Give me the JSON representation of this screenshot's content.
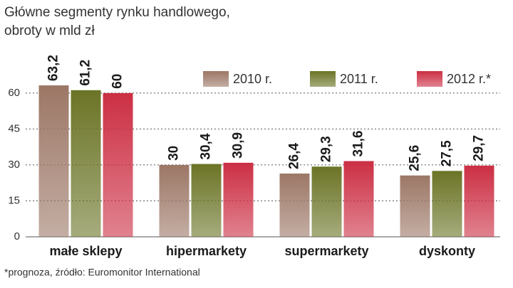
{
  "chart_data": {
    "type": "bar",
    "title": [
      "Główne segmenty rynku handlowego,",
      "obroty w mld zł"
    ],
    "footnote": "*prognoza, źródło: Euromonitor International",
    "categories": [
      "małe sklepy",
      "hipermarkety",
      "supermarkety",
      "dyskonty"
    ],
    "series": [
      {
        "name": "2010 r.",
        "color": "#9c7766",
        "values": [
          63.2,
          30,
          26.4,
          25.6
        ],
        "value_labels": [
          "63,2",
          "30",
          "26,4",
          "25,6"
        ]
      },
      {
        "name": "2011 r.",
        "color": "#6b7426",
        "values": [
          61.2,
          30.4,
          29.3,
          27.5
        ],
        "value_labels": [
          "61,2",
          "30,4",
          "29,3",
          "27,5"
        ]
      },
      {
        "name": "2012 r.*",
        "color": "#cc2f44",
        "values": [
          60,
          30.9,
          31.6,
          29.7
        ],
        "value_labels": [
          "60",
          "30,9",
          "31,6",
          "29,7"
        ]
      }
    ],
    "ylim": [
      0,
      65
    ],
    "yticks": [
      0,
      15,
      30,
      45,
      60
    ],
    "grid": true
  }
}
